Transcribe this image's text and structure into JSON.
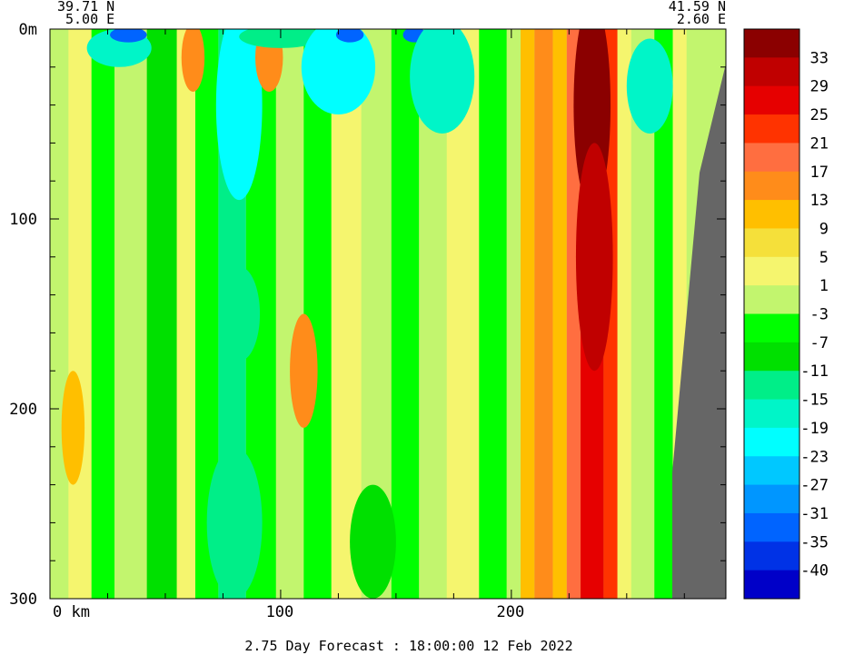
{
  "header": {
    "left_lat": "39.71 N",
    "left_lon": "5.00 E",
    "right_lat": "41.59 N",
    "right_lon": "2.60 E"
  },
  "footer": {
    "forecast": "2.75 Day Forecast : 18:00:00  12 Feb 2022"
  },
  "chart_data": {
    "type": "heatmap",
    "title": "",
    "xlabel": "km",
    "ylabel": "",
    "x_tick_labels": [
      "0 km",
      "100",
      "200"
    ],
    "x_ticks": [
      0,
      100,
      200
    ],
    "y_tick_labels": [
      "0m",
      "100",
      "200",
      "300"
    ],
    "y_ticks": [
      0,
      100,
      200,
      300
    ],
    "xlim": [
      0,
      293
    ],
    "ylim": [
      300,
      0
    ],
    "colorbar": {
      "labels": [
        "33",
        "29",
        "25",
        "21",
        "17",
        "13",
        "9",
        "5",
        "1",
        "-3",
        "-7",
        "-11",
        "-15",
        "-19",
        "-23",
        "-27",
        "-31",
        "-35",
        "-40"
      ],
      "colors": [
        "#8b0000",
        "#c00000",
        "#e60000",
        "#ff3300",
        "#ff6e40",
        "#ff8c1a",
        "#ffbf00",
        "#f5e03a",
        "#f5f56e",
        "#c2f56e",
        "#00ff00",
        "#00e000",
        "#00ee88",
        "#00f5c8",
        "#00ffff",
        "#00c8ff",
        "#0096ff",
        "#0064ff",
        "#0032e6",
        "#0000c8"
      ]
    },
    "land_color": "#666666",
    "columns": [
      {
        "x": [
          0,
          8
        ],
        "color": "#c2f56e"
      },
      {
        "x": [
          8,
          18
        ],
        "color": "#f5f56e"
      },
      {
        "x": [
          18,
          28
        ],
        "color": "#00ff00"
      },
      {
        "x": [
          28,
          42
        ],
        "color": "#c2f56e"
      },
      {
        "x": [
          42,
          55
        ],
        "color": "#00e000"
      },
      {
        "x": [
          55,
          63
        ],
        "color": "#f5f56e"
      },
      {
        "x": [
          63,
          73
        ],
        "color": "#00ff00"
      },
      {
        "x": [
          73,
          85
        ],
        "color": "#00ee88"
      },
      {
        "x": [
          85,
          98
        ],
        "color": "#00ff00"
      },
      {
        "x": [
          98,
          110
        ],
        "color": "#c2f56e"
      },
      {
        "x": [
          110,
          122
        ],
        "color": "#00ff00"
      },
      {
        "x": [
          122,
          135
        ],
        "color": "#f5f56e"
      },
      {
        "x": [
          135,
          148
        ],
        "color": "#c2f56e"
      },
      {
        "x": [
          148,
          160
        ],
        "color": "#00ff00"
      },
      {
        "x": [
          160,
          172
        ],
        "color": "#c2f56e"
      },
      {
        "x": [
          172,
          186
        ],
        "color": "#f5f56e"
      },
      {
        "x": [
          186,
          198
        ],
        "color": "#00ff00"
      },
      {
        "x": [
          198,
          204
        ],
        "color": "#c2f56e"
      },
      {
        "x": [
          204,
          210
        ],
        "color": "#ffbf00"
      },
      {
        "x": [
          210,
          218
        ],
        "color": "#ff8c1a"
      },
      {
        "x": [
          218,
          224
        ],
        "color": "#ffbf00"
      },
      {
        "x": [
          224,
          230
        ],
        "color": "#ff6e40"
      },
      {
        "x": [
          230,
          240
        ],
        "color": "#e60000"
      },
      {
        "x": [
          240,
          246
        ],
        "color": "#ff3300"
      },
      {
        "x": [
          246,
          252
        ],
        "color": "#f5f56e"
      },
      {
        "x": [
          252,
          262
        ],
        "color": "#c2f56e"
      },
      {
        "x": [
          262,
          270
        ],
        "color": "#00ff00"
      },
      {
        "x": [
          270,
          276
        ],
        "color": "#f5f56e"
      },
      {
        "x": [
          276,
          293
        ],
        "color": "#c2f56e"
      }
    ],
    "blobs": [
      {
        "x": 30,
        "y": 10,
        "rx": 14,
        "ry": 10,
        "color": "#00f5c8"
      },
      {
        "x": 34,
        "y": 3,
        "rx": 8,
        "ry": 4,
        "color": "#0064ff"
      },
      {
        "x": 62,
        "y": 15,
        "rx": 5,
        "ry": 18,
        "color": "#ff8c1a"
      },
      {
        "x": 82,
        "y": 40,
        "rx": 10,
        "ry": 50,
        "color": "#00ffff"
      },
      {
        "x": 82,
        "y": 150,
        "rx": 9,
        "ry": 25,
        "color": "#00ee88"
      },
      {
        "x": 95,
        "y": 15,
        "rx": 6,
        "ry": 18,
        "color": "#ff8c1a"
      },
      {
        "x": 100,
        "y": 4,
        "rx": 18,
        "ry": 6,
        "color": "#00ee88"
      },
      {
        "x": 125,
        "y": 20,
        "rx": 16,
        "ry": 25,
        "color": "#00ffff"
      },
      {
        "x": 130,
        "y": 3,
        "rx": 6,
        "ry": 4,
        "color": "#0064ff"
      },
      {
        "x": 158,
        "y": 3,
        "rx": 5,
        "ry": 4,
        "color": "#0064ff"
      },
      {
        "x": 170,
        "y": 25,
        "rx": 14,
        "ry": 30,
        "color": "#00f5c8"
      },
      {
        "x": 110,
        "y": 180,
        "rx": 6,
        "ry": 30,
        "color": "#ff8c1a"
      },
      {
        "x": 10,
        "y": 210,
        "rx": 5,
        "ry": 30,
        "color": "#ffbf00"
      },
      {
        "x": 235,
        "y": 40,
        "rx": 8,
        "ry": 55,
        "color": "#8b0000"
      },
      {
        "x": 236,
        "y": 120,
        "rx": 8,
        "ry": 60,
        "color": "#c00000"
      },
      {
        "x": 260,
        "y": 30,
        "rx": 10,
        "ry": 25,
        "color": "#00f5c8"
      },
      {
        "x": 80,
        "y": 260,
        "rx": 12,
        "ry": 40,
        "color": "#00ee88"
      },
      {
        "x": 140,
        "y": 270,
        "rx": 10,
        "ry": 30,
        "color": "#00e000"
      }
    ]
  }
}
